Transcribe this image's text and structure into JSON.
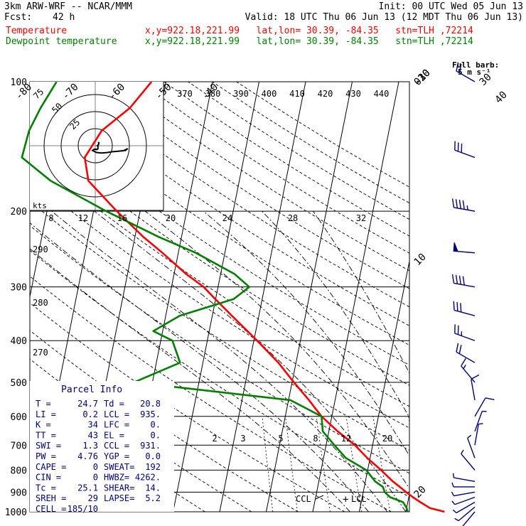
{
  "header": {
    "model": "3km ARW-WRF -- NCAR/MMM",
    "init": "Init: 00 UTC Wed 05 Jun 13",
    "fcst_label": "Fcst:",
    "fcst_value": "42 h",
    "valid": "Valid: 18 UTC Thu 06 Jun 13 (12 MDT Thu 06 Jun 13)",
    "temp_label": "Temperature",
    "temp_info": "x,y=922.18,221.99   lat,lon= 30.39, -84.35   stn=TLH ,72214",
    "dew_label": "Dewpoint temperature",
    "dew_info": "x,y=922.18,221.99   lat,lon= 30.39, -84.35   stn=TLH ,72214",
    "full_barb": "Full barb:",
    "full_barb_units": "5 m s⁻¹"
  },
  "colors": {
    "temperature": "#ff0000",
    "dewpoint": "#007f00",
    "wind": "#00007f",
    "hodograph": "#000000"
  },
  "chart_data": {
    "type": "line",
    "title": "",
    "series": [
      {
        "name": "Temperature",
        "pressure": [
          1000,
          980,
          950,
          925,
          900,
          875,
          850,
          800,
          750,
          700,
          650,
          600,
          550,
          500,
          450,
          400,
          350,
          320,
          300,
          280,
          250,
          230,
          200,
          170,
          150,
          130,
          115,
          100
        ],
        "temperature": [
          28.3,
          25.0,
          22.7,
          20.9,
          19.2,
          17.6,
          15.9,
          12.9,
          9.4,
          6.2,
          1.9,
          -2.2,
          -5.6,
          -9.6,
          -13.8,
          -19.3,
          -25.8,
          -30.1,
          -33.1,
          -37.4,
          -43.4,
          -48.1,
          -55.0,
          -62.4,
          -64.2,
          -61.7,
          -56.6,
          -53.1
        ]
      },
      {
        "name": "Dewpoint temperature",
        "pressure": [
          1000,
          980,
          950,
          925,
          900,
          875,
          850,
          800,
          750,
          700,
          650,
          600,
          550,
          500,
          450,
          400,
          380,
          350,
          320,
          300,
          280,
          250,
          230,
          200,
          170,
          150,
          130,
          115,
          100
        ],
        "dewpoint": [
          20.4,
          20.0,
          19.0,
          16.0,
          14.6,
          14.0,
          12.1,
          9.7,
          4.8,
          1.8,
          -1.3,
          -2.2,
          -9.6,
          -44.0,
          -34.9,
          -37.5,
          -42.0,
          -37.0,
          -26.1,
          -23.3,
          -27.0,
          -36.2,
          -44.7,
          -57.3,
          -70.5,
          -77.7,
          -77.3,
          -75.8,
          -73.5
        ]
      }
    ],
    "wind": {
      "pressure": [
        1000,
        975,
        950,
        925,
        900,
        875,
        850,
        800,
        750,
        700,
        650,
        600,
        550,
        500,
        450,
        400,
        350,
        300,
        250,
        200,
        150,
        100
      ],
      "speed_kt": [
        6,
        7,
        6,
        5,
        4,
        3,
        4,
        6,
        6,
        5,
        6,
        8,
        10,
        14,
        20,
        26,
        32,
        42,
        48,
        44,
        30,
        22
      ],
      "direction_deg": [
        220,
        230,
        240,
        250,
        260,
        270,
        280,
        320,
        340,
        10,
        20,
        30,
        350,
        320,
        300,
        290,
        285,
        280,
        275,
        280,
        290,
        300
      ]
    },
    "axes": {
      "pressure_ticks": [
        "100",
        "200",
        "300",
        "400",
        "500",
        "600",
        "700",
        "800",
        "900",
        "1000"
      ],
      "temperature_ticks_top": [
        "-80",
        "-70",
        "-60",
        "-50",
        "-40"
      ],
      "temperature_ticks_right": [
        "-30",
        "-20",
        "-10",
        "0",
        "10",
        "20",
        "30",
        "40"
      ],
      "theta_labels": [
        "370",
        "380",
        "390",
        "400",
        "410",
        "420",
        "430",
        "440"
      ],
      "dry_adiabat_labels": [
        "290",
        "280",
        "270"
      ],
      "moist_adiabat_labels": [
        "8",
        "12",
        "16",
        "20",
        "24",
        "28",
        "32"
      ],
      "mixing_ratio_labels": [
        "2",
        "3",
        "5",
        "8",
        "12",
        "20"
      ],
      "hodograph_ring_labels": [
        "75",
        "50",
        "25"
      ],
      "hodograph_units": "kts",
      "ccl_label": "CCL",
      "lcl_label": "LCL"
    },
    "parcel_info": {
      "title": "Parcel Info",
      "rows": [
        [
          "T  =",
          "24.7",
          "Td =",
          "20.8"
        ],
        [
          "LI =",
          "0.2",
          "LCL =",
          "935."
        ],
        [
          "K  =",
          "34",
          "LFC =",
          "0."
        ],
        [
          "TT =",
          "43",
          "EL  =",
          "0."
        ],
        [
          "SWI =",
          "1.3",
          "CCL =",
          "931."
        ],
        [
          "PW =",
          "4.76",
          "YGP =",
          "0.0"
        ],
        [
          "CAPE =",
          "0",
          "SWEAT=",
          "192"
        ],
        [
          "CIN =",
          "0",
          "HWBZ=",
          "4262."
        ],
        [
          "Tc =",
          "25.1",
          "SHEAR=",
          "14."
        ],
        [
          "SREH =",
          "29",
          "LAPSE=",
          "5.2"
        ],
        [
          "CELL =",
          "185/10",
          "",
          ""
        ]
      ]
    }
  }
}
